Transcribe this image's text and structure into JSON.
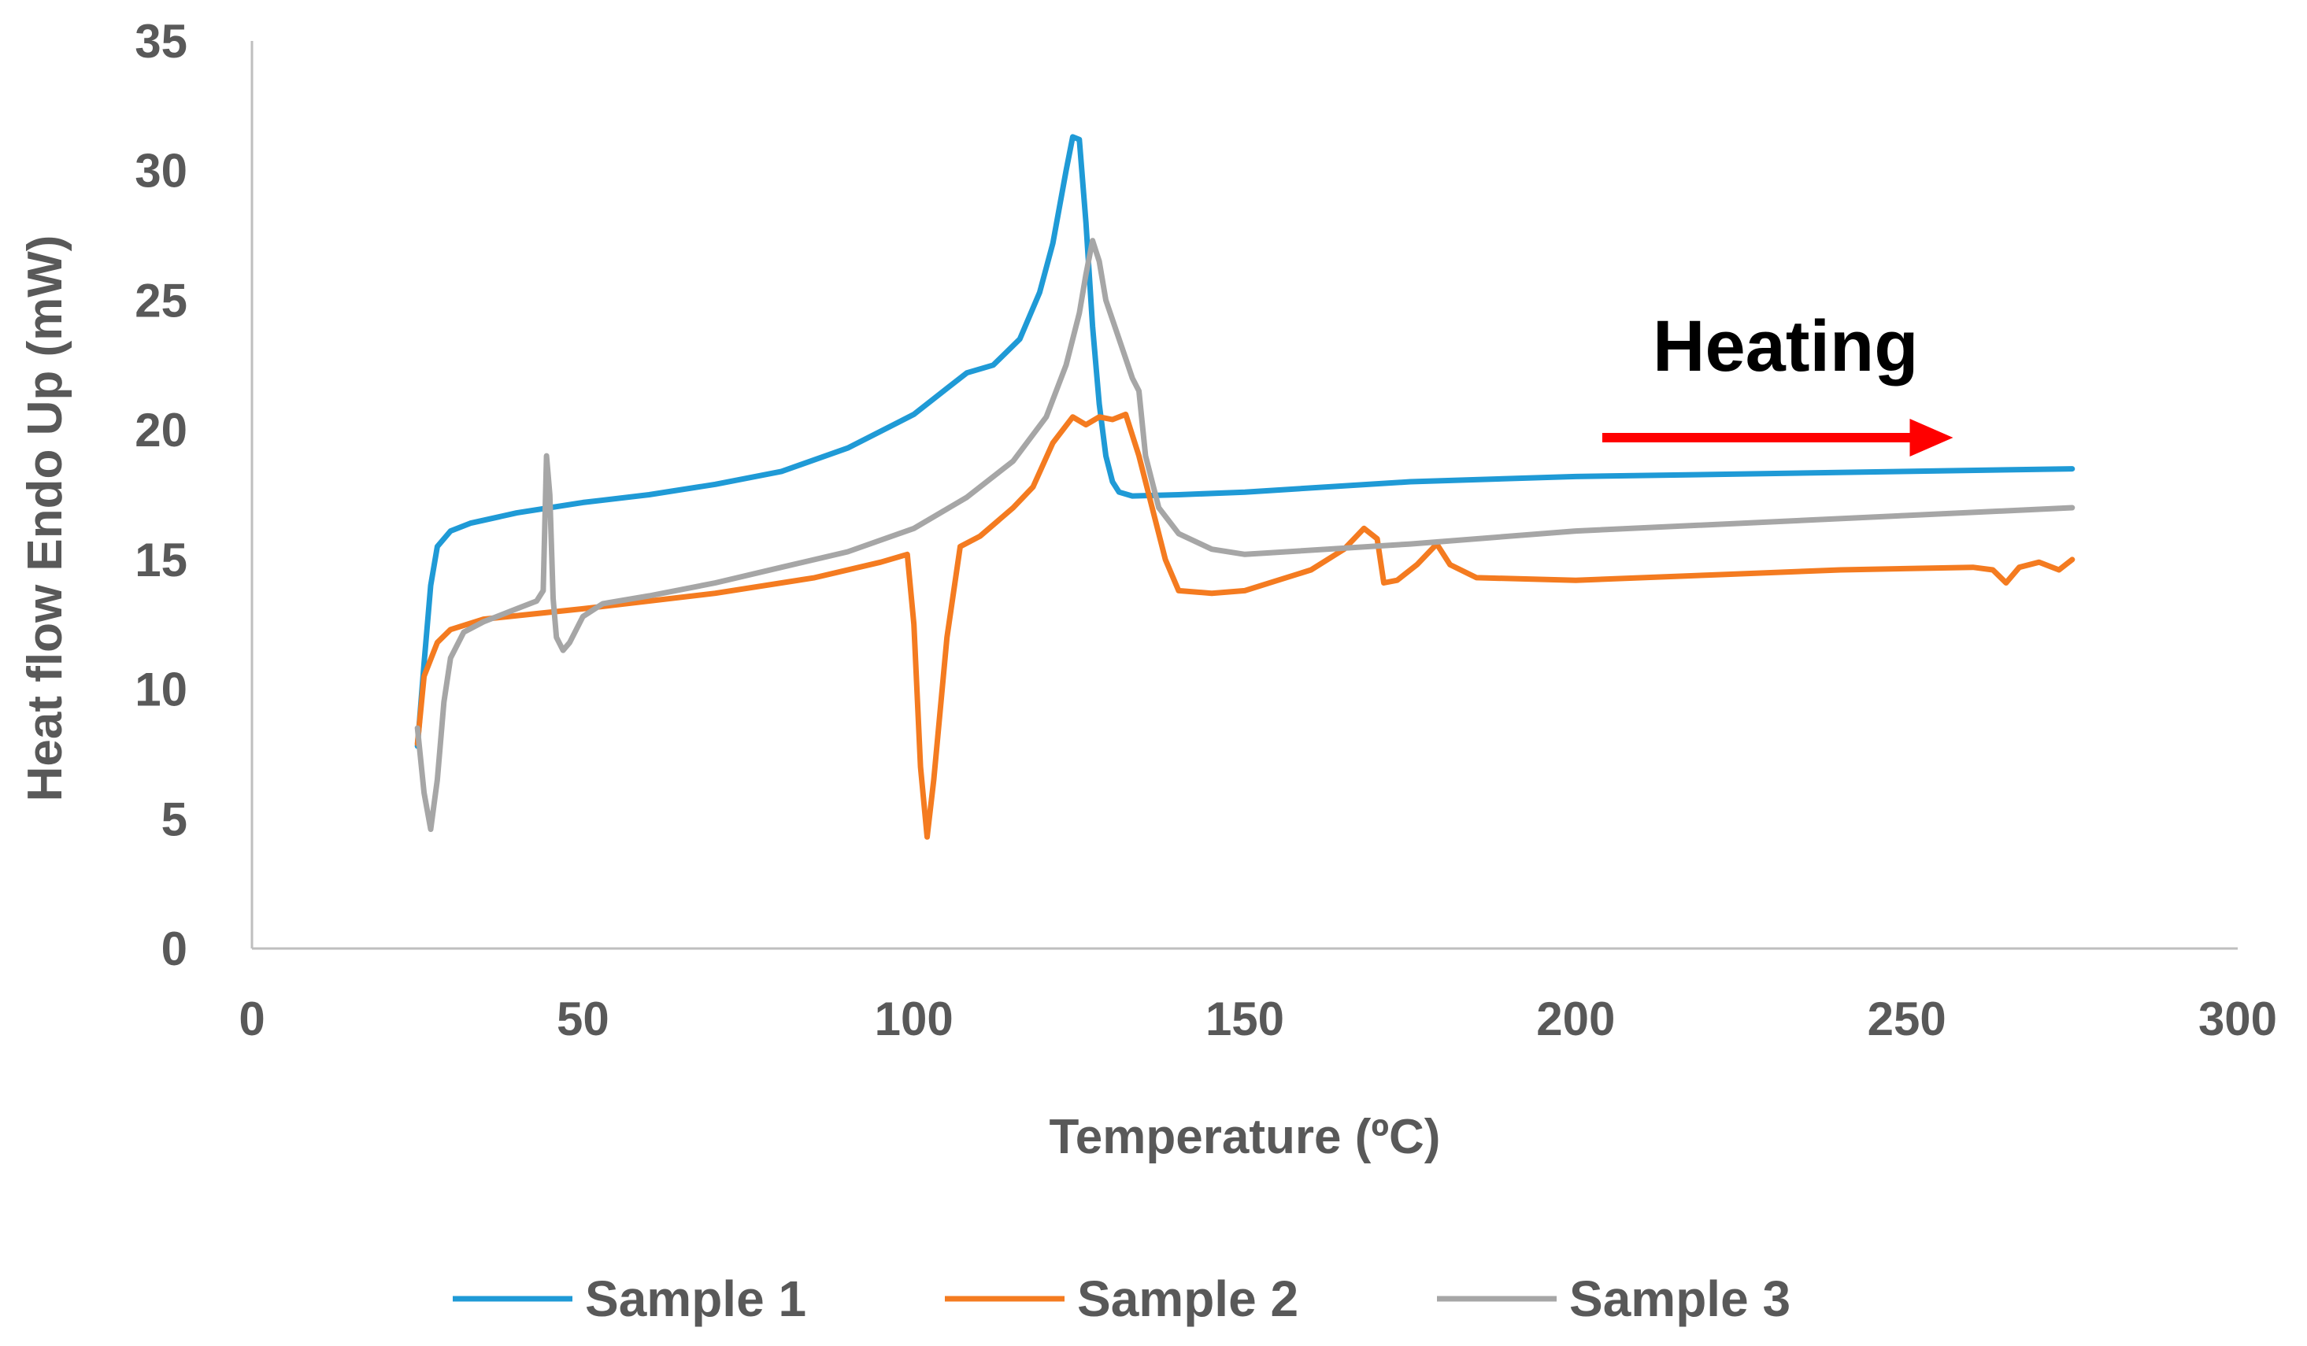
{
  "chart_data": {
    "type": "line",
    "title": "",
    "xlabel": "Temperature (ºC)",
    "ylabel": "Heat flow Endo Up  (mW)",
    "xlim": [
      0,
      300
    ],
    "ylim": [
      0,
      35
    ],
    "xticks": [
      0,
      50,
      100,
      150,
      200,
      250,
      300
    ],
    "yticks": [
      0,
      5,
      10,
      15,
      20,
      25,
      30,
      35
    ],
    "grid": false,
    "legend_position": "bottom",
    "annotation": {
      "text": "Heating",
      "arrow_from_x": 204,
      "arrow_to_x": 257,
      "arrow_y": 19.7,
      "arrow_color": "#ff0000"
    },
    "series": [
      {
        "name": "Sample 1",
        "color": "#1f9ad6",
        "points": [
          [
            25,
            7.8
          ],
          [
            26,
            11
          ],
          [
            27,
            14
          ],
          [
            28,
            15.5
          ],
          [
            30,
            16.1
          ],
          [
            33,
            16.4
          ],
          [
            40,
            16.8
          ],
          [
            50,
            17.2
          ],
          [
            60,
            17.5
          ],
          [
            70,
            17.9
          ],
          [
            80,
            18.4
          ],
          [
            90,
            19.3
          ],
          [
            100,
            20.6
          ],
          [
            105,
            21.6
          ],
          [
            108,
            22.2
          ],
          [
            112,
            22.5
          ],
          [
            116,
            23.5
          ],
          [
            119,
            25.3
          ],
          [
            121,
            27.2
          ],
          [
            123,
            30
          ],
          [
            124,
            31.3
          ],
          [
            125,
            31.2
          ],
          [
            126,
            28
          ],
          [
            127,
            24
          ],
          [
            128,
            21
          ],
          [
            129,
            19
          ],
          [
            130,
            18
          ],
          [
            131,
            17.6
          ],
          [
            133,
            17.45
          ],
          [
            140,
            17.5
          ],
          [
            150,
            17.6
          ],
          [
            175,
            18
          ],
          [
            200,
            18.2
          ],
          [
            250,
            18.4
          ],
          [
            275,
            18.5
          ]
        ]
      },
      {
        "name": "Sample 2",
        "color": "#f47b20",
        "points": [
          [
            25,
            7.9
          ],
          [
            26,
            10.5
          ],
          [
            28,
            11.8
          ],
          [
            30,
            12.3
          ],
          [
            35,
            12.7
          ],
          [
            50,
            13.1
          ],
          [
            70,
            13.7
          ],
          [
            85,
            14.3
          ],
          [
            95,
            14.9
          ],
          [
            99,
            15.2
          ],
          [
            100,
            12.5
          ],
          [
            101,
            7
          ],
          [
            102,
            4.3
          ],
          [
            103,
            6.5
          ],
          [
            105,
            12
          ],
          [
            107,
            15.5
          ],
          [
            110,
            15.9
          ],
          [
            115,
            17
          ],
          [
            118,
            17.8
          ],
          [
            121,
            19.5
          ],
          [
            124,
            20.5
          ],
          [
            126,
            20.2
          ],
          [
            128,
            20.5
          ],
          [
            130,
            20.4
          ],
          [
            132,
            20.6
          ],
          [
            134,
            19
          ],
          [
            136,
            17
          ],
          [
            138,
            15
          ],
          [
            140,
            13.8
          ],
          [
            145,
            13.7
          ],
          [
            150,
            13.8
          ],
          [
            155,
            14.2
          ],
          [
            160,
            14.6
          ],
          [
            165,
            15.4
          ],
          [
            168,
            16.2
          ],
          [
            170,
            15.8
          ],
          [
            171,
            14.1
          ],
          [
            173,
            14.2
          ],
          [
            176,
            14.8
          ],
          [
            179,
            15.6
          ],
          [
            181,
            14.8
          ],
          [
            185,
            14.3
          ],
          [
            200,
            14.2
          ],
          [
            220,
            14.4
          ],
          [
            240,
            14.6
          ],
          [
            260,
            14.7
          ],
          [
            263,
            14.6
          ],
          [
            265,
            14.1
          ],
          [
            267,
            14.7
          ],
          [
            270,
            14.9
          ],
          [
            273,
            14.6
          ],
          [
            275,
            15
          ]
        ]
      },
      {
        "name": "Sample 3",
        "color": "#a6a6a6",
        "points": [
          [
            25,
            8.5
          ],
          [
            26,
            6
          ],
          [
            27,
            4.6
          ],
          [
            28,
            6.5
          ],
          [
            29,
            9.5
          ],
          [
            30,
            11.2
          ],
          [
            32,
            12.2
          ],
          [
            35,
            12.6
          ],
          [
            40,
            13.1
          ],
          [
            43,
            13.4
          ],
          [
            44,
            13.8
          ],
          [
            44.5,
            19
          ],
          [
            45,
            17.5
          ],
          [
            45.5,
            13.5
          ],
          [
            46,
            12
          ],
          [
            47,
            11.5
          ],
          [
            48,
            11.8
          ],
          [
            50,
            12.8
          ],
          [
            53,
            13.3
          ],
          [
            60,
            13.6
          ],
          [
            70,
            14.1
          ],
          [
            80,
            14.7
          ],
          [
            90,
            15.3
          ],
          [
            100,
            16.2
          ],
          [
            108,
            17.4
          ],
          [
            115,
            18.8
          ],
          [
            120,
            20.5
          ],
          [
            123,
            22.5
          ],
          [
            125,
            24.5
          ],
          [
            126,
            26
          ],
          [
            127,
            27.3
          ],
          [
            128,
            26.5
          ],
          [
            129,
            25
          ],
          [
            131,
            23.5
          ],
          [
            133,
            22
          ],
          [
            134,
            21.5
          ],
          [
            135,
            19
          ],
          [
            137,
            17
          ],
          [
            140,
            16
          ],
          [
            145,
            15.4
          ],
          [
            150,
            15.2
          ],
          [
            175,
            15.6
          ],
          [
            200,
            16.1
          ],
          [
            250,
            16.7
          ],
          [
            275,
            17
          ]
        ]
      }
    ]
  }
}
